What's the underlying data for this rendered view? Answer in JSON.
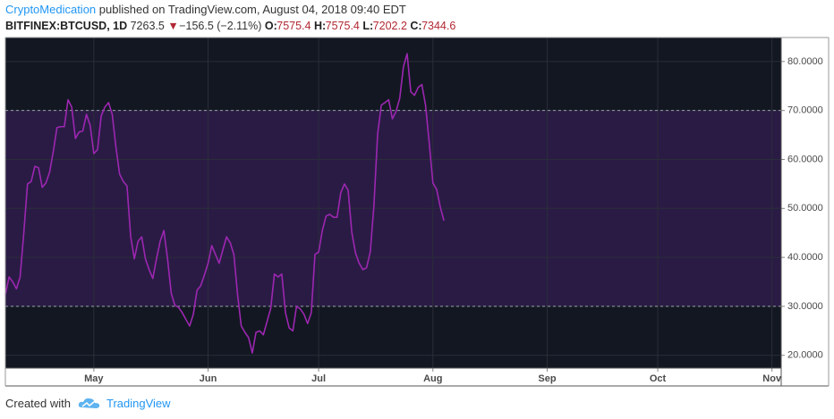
{
  "header": {
    "author": "CryptoMedication",
    "published": "published on TradingView.com, August 04, 2018 09:40 EDT",
    "symbol": "BITFINEX:BTCUSD, 1D",
    "price": "7263.5",
    "arrow": "▼",
    "change": "−156.5 (−2.11%)",
    "ohlc": [
      {
        "label": "O:",
        "value": "7575.4"
      },
      {
        "label": "H:",
        "value": "7575.4"
      },
      {
        "label": "L:",
        "value": "7202.2"
      },
      {
        "label": "C:",
        "value": "7344.6"
      }
    ],
    "down_color": "#b22833"
  },
  "chart_data": {
    "type": "line",
    "color": "#9c27b0",
    "background": "#131722",
    "band": [
      30,
      70
    ],
    "band_color": "#2a1b45",
    "values": [
      32.4,
      36,
      35,
      33.6,
      36,
      45,
      55,
      55.5,
      58.6,
      58.3,
      54.3,
      55.2,
      57.4,
      61.6,
      66.5,
      66.7,
      66.7,
      72.2,
      70.7,
      64.3,
      65.6,
      65.8,
      69.2,
      67,
      61.2,
      62,
      68.9,
      70.7,
      71.6,
      69.2,
      62.5,
      57,
      55.5,
      54.6,
      44.2,
      39.7,
      43.3,
      44.2,
      39.7,
      37.5,
      35.7,
      39.7,
      43.3,
      45.5,
      39.7,
      32.7,
      30.2,
      29.8,
      28.7,
      27.3,
      26,
      28.4,
      33.3,
      34.2,
      36.4,
      38.8,
      42.4,
      40.6,
      38.8,
      41.5,
      44.2,
      43,
      40.6,
      32.4,
      26,
      24.7,
      23.6,
      20.5,
      24.7,
      25,
      24.2,
      26.9,
      29.6,
      36.6,
      36,
      36.6,
      28.7,
      25.6,
      25,
      30,
      29.5,
      28.4,
      26.5,
      28.7,
      40.6,
      41.1,
      45.5,
      48.4,
      48.8,
      48.2,
      48.2,
      53.2,
      55,
      53.7,
      45.1,
      40.9,
      38.8,
      37.5,
      37.9,
      41.1,
      50.6,
      65.2,
      71.1,
      71.6,
      72.2,
      68.3,
      69.8,
      72.5,
      78.9,
      81.6,
      73.8,
      73.1,
      74.7,
      75.3,
      71.1,
      63.4,
      55.2,
      53.9,
      50.3,
      47.5
    ],
    "xlim": [
      0,
      210.5
    ],
    "xticks": [
      {
        "value": 24,
        "label": "May"
      },
      {
        "value": 55,
        "label": "Jun"
      },
      {
        "value": 85,
        "label": "Jul"
      },
      {
        "value": 116,
        "label": "Aug"
      },
      {
        "value": 147,
        "label": "Sep"
      },
      {
        "value": 177,
        "label": "Oct"
      },
      {
        "value": 208,
        "label": "Nov"
      }
    ],
    "ylim": [
      17.4,
      84.9
    ],
    "yticks": [
      {
        "value": 20,
        "label": "20.0000"
      },
      {
        "value": 30,
        "label": "30.0000"
      },
      {
        "value": 40,
        "label": "40.0000"
      },
      {
        "value": 50,
        "label": "50.0000"
      },
      {
        "value": 60,
        "label": "60.0000"
      },
      {
        "value": 70,
        "label": "70.0000"
      },
      {
        "value": 80,
        "label": "80.0000"
      }
    ],
    "grid": true
  },
  "footer": {
    "created": "Created with",
    "brand": "TradingView"
  }
}
